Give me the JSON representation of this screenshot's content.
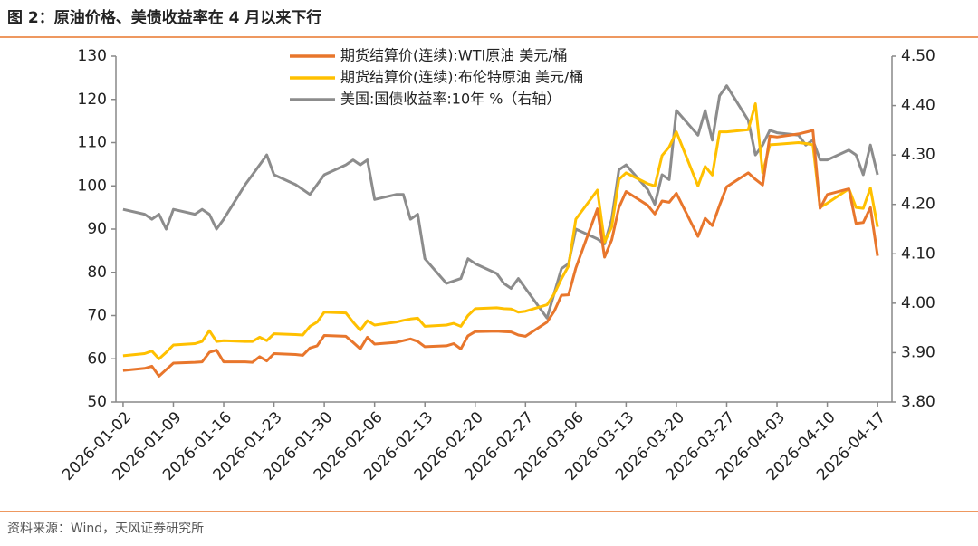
{
  "chart_data": {
    "type": "line",
    "title": "图 2：原油价格、美债收益率在 4 月以来下行",
    "source": "资料来源：Wind，天风证券研究所",
    "x": [
      "2026-01-02",
      "2026-01-05",
      "2026-01-06",
      "2026-01-07",
      "2026-01-08",
      "2026-01-09",
      "2026-01-12",
      "2026-01-13",
      "2026-01-14",
      "2026-01-15",
      "2026-01-16",
      "2026-01-19",
      "2026-01-20",
      "2026-01-21",
      "2026-01-22",
      "2026-01-23",
      "2026-01-26",
      "2026-01-27",
      "2026-01-28",
      "2026-01-29",
      "2026-01-30",
      "2026-02-02",
      "2026-02-03",
      "2026-02-04",
      "2026-02-05",
      "2026-02-06",
      "2026-02-09",
      "2026-02-10",
      "2026-02-11",
      "2026-02-12",
      "2026-02-13",
      "2026-02-16",
      "2026-02-17",
      "2026-02-18",
      "2026-02-19",
      "2026-02-20",
      "2026-02-23",
      "2026-02-24",
      "2026-02-25",
      "2026-02-26",
      "2026-02-27",
      "2026-03-02",
      "2026-03-03",
      "2026-03-04",
      "2026-03-05",
      "2026-03-06",
      "2026-03-09",
      "2026-03-10",
      "2026-03-11",
      "2026-03-12",
      "2026-03-13",
      "2026-03-16",
      "2026-03-17",
      "2026-03-18",
      "2026-03-19",
      "2026-03-20",
      "2026-03-23",
      "2026-03-24",
      "2026-03-25",
      "2026-03-26",
      "2026-03-27",
      "2026-03-30",
      "2026-03-31",
      "2026-04-01",
      "2026-04-02",
      "2026-04-03",
      "2026-04-06",
      "2026-04-07",
      "2026-04-08",
      "2026-04-09",
      "2026-04-10",
      "2026-04-13",
      "2026-04-14",
      "2026-04-15",
      "2026-04-16",
      "2026-04-17"
    ],
    "xlim": [
      "2026-01-01",
      "2026-04-19"
    ],
    "xticks": [
      "2026-01-02",
      "2026-01-09",
      "2026-01-16",
      "2026-01-23",
      "2026-01-30",
      "2026-02-06",
      "2026-02-13",
      "2026-02-20",
      "2026-02-27",
      "2026-03-06",
      "2026-03-13",
      "2026-03-20",
      "2026-03-27",
      "2026-04-03",
      "2026-04-10",
      "2026-04-17"
    ],
    "ylim": [
      50,
      130
    ],
    "yticks": [
      50,
      60,
      70,
      80,
      90,
      100,
      110,
      120,
      130
    ],
    "y2lim": [
      3.8,
      4.5
    ],
    "y2ticks": [
      {
        "value": 3.8,
        "label": "3.80"
      },
      {
        "value": 3.9,
        "label": "3.90"
      },
      {
        "value": 4.0,
        "label": "4.00"
      },
      {
        "value": 4.1,
        "label": "4.10"
      },
      {
        "value": 4.2,
        "label": "4.20"
      },
      {
        "value": 4.3,
        "label": "4.30"
      },
      {
        "value": 4.4,
        "label": "4.40"
      },
      {
        "value": 4.5,
        "label": "4.50"
      }
    ],
    "grid": false,
    "legend": "top",
    "series": [
      {
        "name": "期货结算价(连续):WTI原油 美元/桶",
        "color": "#e8762c",
        "values": [
          57.3,
          57.8,
          58.3,
          56.0,
          57.5,
          59.0,
          59.2,
          59.3,
          61.5,
          62.0,
          59.3,
          59.3,
          59.2,
          60.5,
          59.5,
          61.2,
          61.0,
          60.8,
          62.5,
          63.0,
          65.4,
          65.2,
          63.8,
          62.3,
          65.0,
          63.4,
          63.8,
          64.2,
          64.6,
          64.0,
          62.8,
          63.0,
          63.5,
          62.3,
          65.3,
          66.3,
          66.4,
          66.3,
          66.2,
          65.5,
          65.2,
          68.5,
          71.0,
          74.7,
          74.8,
          81.0,
          94.7,
          83.5,
          87.5,
          95.0,
          98.7,
          95.5,
          93.5,
          96.5,
          96.2,
          98.3,
          88.3,
          92.5,
          90.8,
          95.5,
          99.8,
          103.0,
          101.5,
          100.2,
          111.5,
          111.3,
          112.0,
          112.4,
          112.8,
          94.8,
          98.0,
          99.3,
          91.3,
          91.5,
          95.0,
          83.8
        ]
      },
      {
        "name": "期货结算价(连续):布伦特原油 美元/桶",
        "color": "#ffc000",
        "values": [
          60.7,
          61.2,
          61.8,
          60.0,
          61.5,
          63.2,
          63.5,
          64.0,
          66.5,
          64.0,
          64.2,
          64.0,
          64.0,
          65.0,
          64.2,
          65.8,
          65.6,
          65.5,
          67.5,
          68.5,
          70.8,
          70.6,
          68.5,
          66.6,
          68.8,
          67.8,
          68.5,
          68.9,
          69.2,
          69.4,
          67.5,
          67.8,
          68.2,
          67.5,
          70.0,
          71.6,
          71.8,
          71.6,
          71.5,
          70.8,
          71.0,
          72.5,
          75.0,
          78.5,
          81.5,
          92.3,
          99.0,
          87.0,
          90.5,
          101.5,
          103.0,
          100.5,
          100.0,
          107.0,
          109.0,
          112.5,
          100.0,
          104.5,
          102.5,
          112.5,
          112.5,
          113.0,
          119.0,
          103.0,
          109.5,
          109.6,
          110.0,
          109.8,
          109.5,
          95.0,
          96.0,
          99.3,
          95.0,
          94.8,
          99.5,
          90.5
        ]
      },
      {
        "name": "美国:国债收益率:10年 %（右轴）",
        "color": "#8c8c8c",
        "axis": "y2",
        "values": [
          4.19,
          4.18,
          4.17,
          4.18,
          4.15,
          4.19,
          4.18,
          4.19,
          4.18,
          4.15,
          4.17,
          4.24,
          4.26,
          4.28,
          4.3,
          4.26,
          4.24,
          4.23,
          4.22,
          4.24,
          4.26,
          4.28,
          4.29,
          4.28,
          4.29,
          4.21,
          4.22,
          4.22,
          4.17,
          4.18,
          4.09,
          4.04,
          4.045,
          4.05,
          4.09,
          4.08,
          4.06,
          4.04,
          4.03,
          4.05,
          4.03,
          3.97,
          4.02,
          4.07,
          4.08,
          4.15,
          4.13,
          4.12,
          4.17,
          4.27,
          4.28,
          4.23,
          4.2,
          4.26,
          4.25,
          4.39,
          4.34,
          4.39,
          4.33,
          4.42,
          4.44,
          4.37,
          4.3,
          4.32,
          4.35,
          4.345,
          4.34,
          4.32,
          4.33,
          4.29,
          4.29,
          4.31,
          4.3,
          4.26,
          4.32,
          4.26
        ]
      }
    ]
  }
}
